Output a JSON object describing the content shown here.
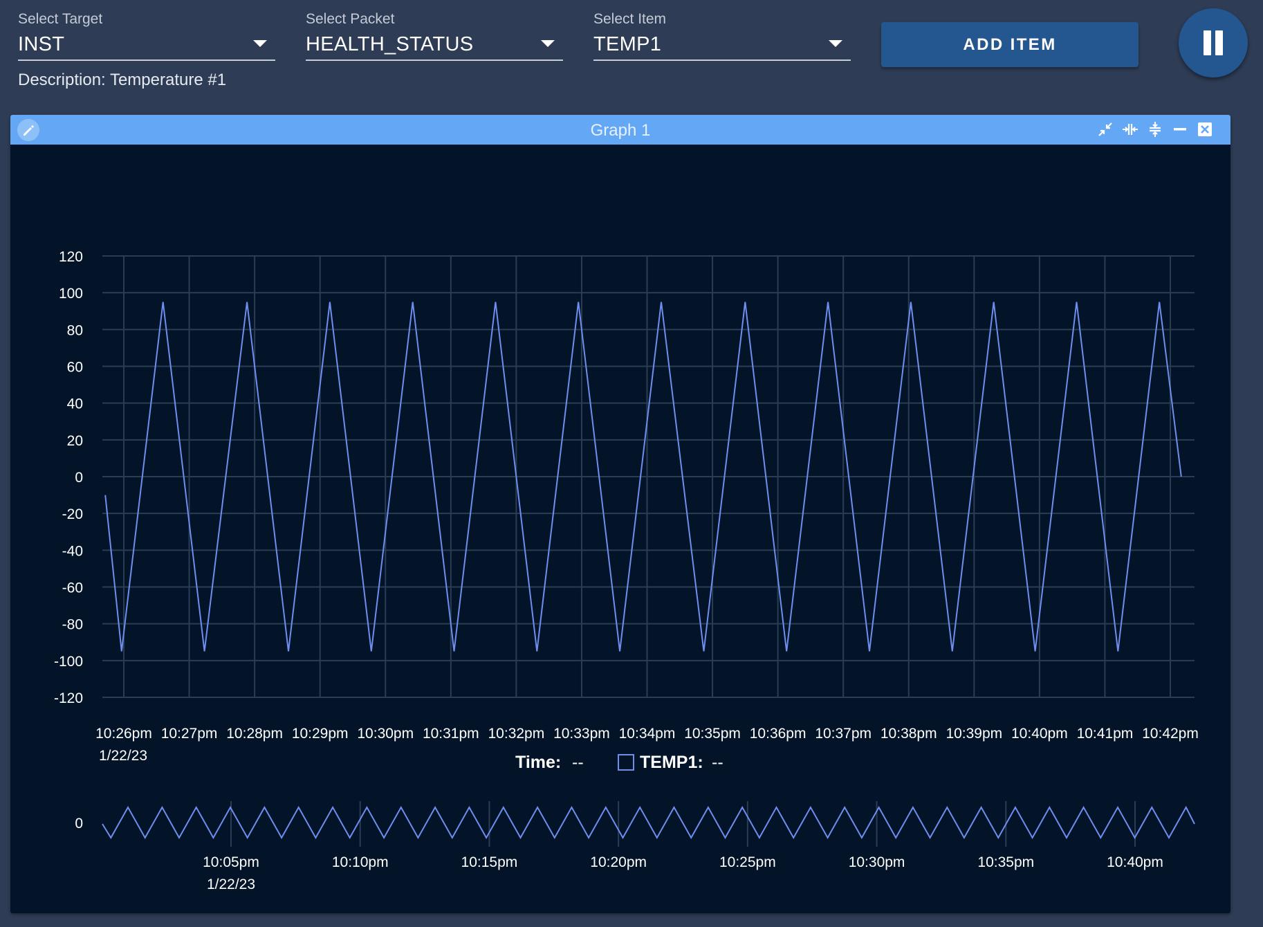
{
  "selectors": {
    "target": {
      "label": "Select Target",
      "value": "INST"
    },
    "packet": {
      "label": "Select Packet",
      "value": "HEALTH_STATUS"
    },
    "item": {
      "label": "Select Item",
      "value": "TEMP1"
    }
  },
  "description": "Description: Temperature #1",
  "add_button_label": "ADD ITEM",
  "pause_icon": "pause-icon",
  "graph": {
    "title": "Graph 1",
    "header_icons": [
      "collapse-icon",
      "expand-width-icon",
      "expand-height-icon",
      "minimize-icon",
      "close-icon"
    ],
    "edit_icon": "pencil-icon",
    "legend": {
      "time_label": "Time:",
      "time_value": "--",
      "series_label": "TEMP1:",
      "series_value": "--",
      "series_color": "#6e8ff0"
    }
  },
  "chart_data": [
    {
      "type": "line",
      "title": "",
      "xlabel": "",
      "ylabel": "",
      "ylim": [
        -120,
        120
      ],
      "yticks": [
        "120",
        "100",
        "80",
        "60",
        "40",
        "20",
        "0",
        "-20",
        "-40",
        "-60",
        "-80",
        "-100",
        "-120"
      ],
      "xticks": [
        "10:26pm",
        "10:27pm",
        "10:28pm",
        "10:29pm",
        "10:30pm",
        "10:31pm",
        "10:32pm",
        "10:33pm",
        "10:34pm",
        "10:35pm",
        "10:36pm",
        "10:37pm",
        "10:38pm",
        "10:39pm",
        "10:40pm",
        "10:41pm",
        "10:42pm"
      ],
      "date_label": "1/22/23",
      "grid": true,
      "series": [
        {
          "name": "TEMP1",
          "color": "#6e8ff0",
          "points": [
            [
              "10:25:43pm",
              -10
            ],
            [
              "10:25:58pm",
              -95
            ],
            [
              "10:26:36pm",
              95
            ],
            [
              "10:27:14pm",
              -95
            ],
            [
              "10:27:53pm",
              95
            ],
            [
              "10:28:31pm",
              -95
            ],
            [
              "10:29:09pm",
              95
            ],
            [
              "10:29:47pm",
              -95
            ],
            [
              "10:30:25pm",
              95
            ],
            [
              "10:31:03pm",
              -95
            ],
            [
              "10:31:41pm",
              95
            ],
            [
              "10:32:19pm",
              -95
            ],
            [
              "10:32:57pm",
              95
            ],
            [
              "10:33:35pm",
              -95
            ],
            [
              "10:34:13pm",
              95
            ],
            [
              "10:34:52pm",
              -95
            ],
            [
              "10:35:30pm",
              95
            ],
            [
              "10:36:08pm",
              -95
            ],
            [
              "10:36:46pm",
              95
            ],
            [
              "10:37:24pm",
              -95
            ],
            [
              "10:38:02pm",
              95
            ],
            [
              "10:38:40pm",
              -95
            ],
            [
              "10:39:18pm",
              95
            ],
            [
              "10:39:56pm",
              -95
            ],
            [
              "10:40:34pm",
              95
            ],
            [
              "10:41:12pm",
              -95
            ],
            [
              "10:41:50pm",
              95
            ],
            [
              "10:42:10pm",
              0
            ]
          ]
        }
      ]
    },
    {
      "type": "line",
      "title": "",
      "yticks": [
        "0"
      ],
      "xticks": [
        "10:05pm",
        "10:10pm",
        "10:15pm",
        "10:20pm",
        "10:25pm",
        "10:30pm",
        "10:35pm",
        "10:40pm"
      ],
      "date_label": "1/22/23",
      "grid": false,
      "series": [
        {
          "name": "TEMP1",
          "color": "#6e8ff0",
          "cycles": 32,
          "amplitude": 95
        }
      ]
    }
  ]
}
